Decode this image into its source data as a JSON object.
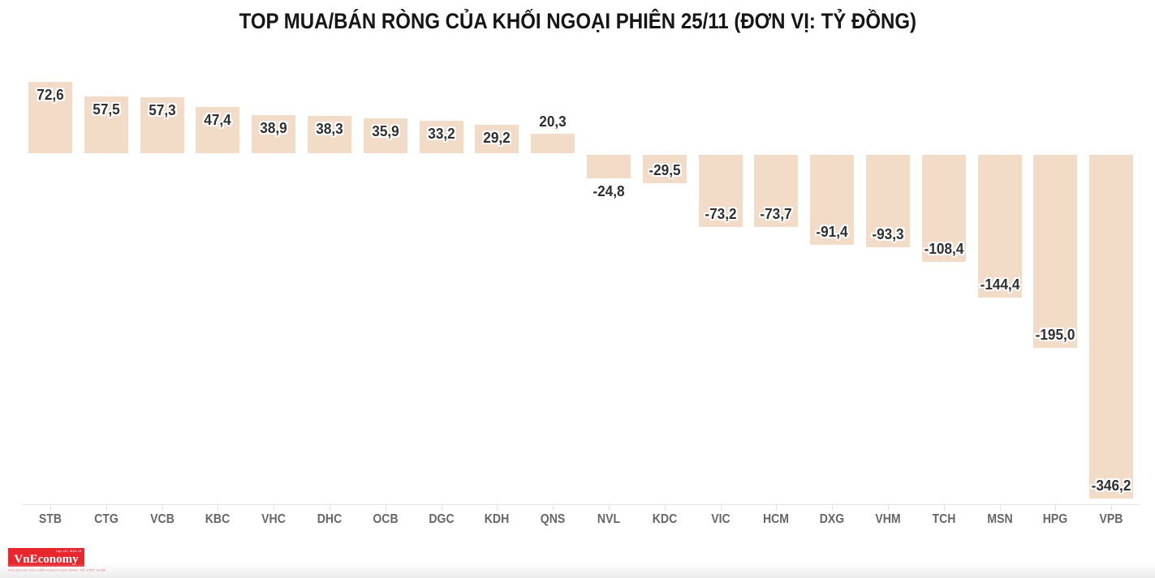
{
  "title": "TOP MUA/BÁN RÒNG CỦA KHỐI NGOẠI PHIÊN 25/11 (ĐƠN VỊ: TỶ ĐỒNG)",
  "chart_data": {
    "type": "bar",
    "title": "TOP MUA/BÁN RÒNG CỦA KHỐI NGOẠI PHIÊN 25/11 (ĐƠN VỊ: TỶ ĐỒNG)",
    "categories": [
      "STB",
      "CTG",
      "VCB",
      "KBC",
      "VHC",
      "DHC",
      "OCB",
      "DGC",
      "KDH",
      "QNS",
      "NVL",
      "KDC",
      "VIC",
      "HCM",
      "DXG",
      "VHM",
      "TCH",
      "MSN",
      "HPG",
      "VPB"
    ],
    "values": [
      72.6,
      57.5,
      57.3,
      47.4,
      38.9,
      38.3,
      35.9,
      33.2,
      29.2,
      20.3,
      -24.8,
      -29.5,
      -73.2,
      -73.7,
      -91.4,
      -93.3,
      -108.4,
      -144.4,
      -195.0,
      -346.2
    ],
    "value_labels": [
      "72,6",
      "57,5",
      "57,3",
      "47,4",
      "38,9",
      "38,3",
      "35,9",
      "33,2",
      "29,2",
      "20,3",
      "-24,8",
      "-29,5",
      "-73,2",
      "-73,7",
      "-91,4",
      "-93,3",
      "-108,4",
      "-144,4",
      "-195,0",
      "-346,2"
    ],
    "xlabel": "",
    "ylabel": "",
    "unit": "tỷ đồng",
    "ylim": [
      -352,
      75
    ],
    "grid": false,
    "legend": "none",
    "bar_color": "#F2DCC8",
    "value_label_color": "#303030",
    "title_color": "#161616",
    "axis_label_color": "#666666",
    "axis_line_color": "#e6e6e6",
    "tick_color": "#e2e2e2"
  },
  "branding": {
    "logo_text": "VnEconomy",
    "tagline_top": "tạp chí điện tử",
    "tagline_bottom": "CƠ QUAN CỦA HỘI KHOA HỌC KINH TẾ VIỆT NAM",
    "logo_color": "#e8262d"
  }
}
